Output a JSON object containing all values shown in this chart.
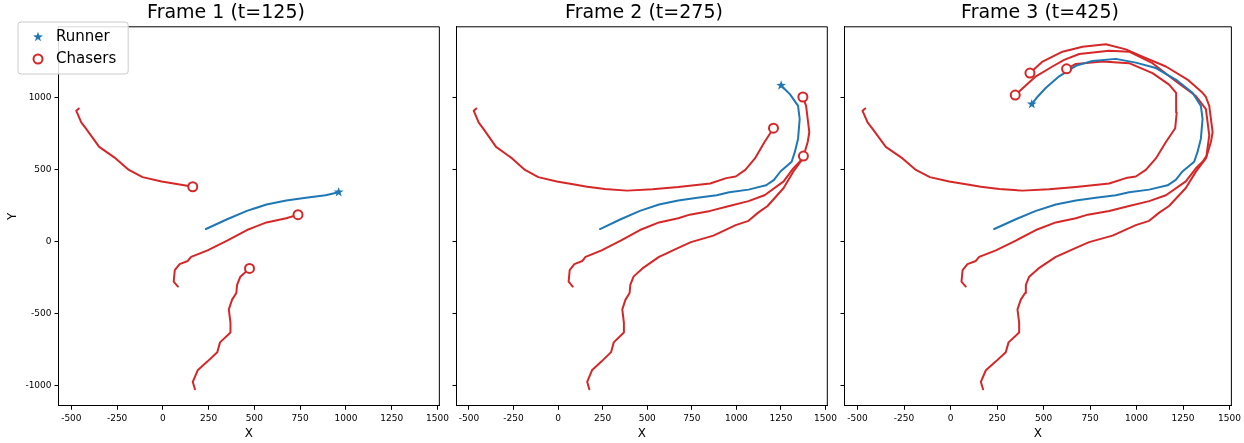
{
  "chart_data": [
    {
      "type": "line",
      "title": "Frame 1 (t=125)",
      "xlabel": "X",
      "ylabel": "Y",
      "xlim": [
        -570,
        1510
      ],
      "ylim": [
        -1140,
        1495
      ],
      "xticks": [
        -500,
        -250,
        0,
        250,
        500,
        750,
        1000,
        1250,
        1500
      ],
      "yticks": [
        -1000,
        -500,
        0,
        500,
        1000
      ],
      "grid": false,
      "legend": "top left",
      "series": [
        {
          "type": "line",
          "marker": "none",
          "color": "#1f77b4",
          "x": [
            235,
            351,
            459,
            566,
            674,
            781,
            889,
            960
          ],
          "values": [
            89,
            157,
            215,
            260,
            288,
            306,
            324,
            345
          ]
        },
        {
          "type": "line",
          "marker": "none",
          "color": "#d62728",
          "x": [
            -459,
            -473,
            -446,
            -419,
            -348,
            -258,
            -186,
            -111,
            -7,
            100,
            163
          ],
          "values": [
            927,
            911,
            831,
            785,
            660,
            580,
            500,
            450,
            420,
            397,
            383
          ]
        },
        {
          "type": "line",
          "marker": "none",
          "color": "#d62728",
          "x": [
            82,
            59,
            65,
            91,
            136,
            154,
            244,
            351,
            459,
            566,
            674,
            738
          ],
          "values": [
            -311,
            -276,
            -196,
            -155,
            -133,
            -105,
            -59,
            9,
            82,
            135,
            164,
            189
          ]
        },
        {
          "type": "line",
          "marker": "none",
          "color": "#d62728",
          "x": [
            175,
            163,
            190,
            244,
            297,
            312,
            369,
            369,
            360,
            378,
            401,
            405,
            423,
            473
          ],
          "values": [
            -1025,
            -973,
            -893,
            -831,
            -767,
            -699,
            -630,
            -562,
            -470,
            -402,
            -356,
            -299,
            -242,
            -185
          ]
        },
        {
          "type": "scatter",
          "name": "Runner",
          "marker": "star",
          "color": "#1f77b4",
          "x": [
            960
          ],
          "values": [
            345
          ]
        },
        {
          "type": "scatter",
          "name": "Chasers",
          "marker": "circle",
          "color": "#d62728",
          "x": [
            163,
            738,
            473
          ],
          "values": [
            383,
            189,
            -185
          ]
        }
      ]
    },
    {
      "type": "line",
      "title": "Frame 2 (t=275)",
      "xlabel": "X",
      "xlim": [
        -570,
        1510
      ],
      "ylim": [
        -1140,
        1495
      ],
      "xticks": [
        -500,
        -250,
        0,
        250,
        500,
        750,
        1000,
        1250,
        1500
      ],
      "yticks": [
        -1000,
        -500,
        0,
        500,
        1000
      ],
      "grid": false,
      "tick_labels": "x",
      "series": [
        {
          "type": "line",
          "marker": "none",
          "color": "#1f77b4",
          "x": [
            235,
            351,
            459,
            566,
            674,
            781,
            889,
            960,
            1068,
            1167,
            1211,
            1247,
            1310,
            1328,
            1346,
            1355,
            1346,
            1301,
            1251
          ],
          "values": [
            89,
            157,
            215,
            260,
            288,
            306,
            324,
            345,
            363,
            393,
            431,
            489,
            557,
            625,
            717,
            854,
            945,
            1025,
            1087
          ]
        },
        {
          "type": "line",
          "marker": "none",
          "color": "#d62728",
          "x": [
            -459,
            -473,
            -446,
            -419,
            -348,
            -258,
            -186,
            -111,
            -7,
            100,
            163,
            262,
            387,
            530,
            674,
            853,
            943,
            996,
            1050,
            1104,
            1158,
            1208
          ],
          "values": [
            927,
            911,
            831,
            785,
            660,
            580,
            500,
            450,
            420,
            397,
            383,
            368,
            356,
            365,
            381,
            406,
            443,
            454,
            500,
            580,
            694,
            790
          ]
        },
        {
          "type": "line",
          "marker": "none",
          "color": "#d62728",
          "x": [
            82,
            59,
            65,
            91,
            136,
            154,
            244,
            351,
            459,
            566,
            674,
            738,
            853,
            960,
            1068,
            1158,
            1265,
            1319,
            1355,
            1376
          ],
          "values": [
            -311,
            -276,
            -196,
            -155,
            -133,
            -105,
            -59,
            9,
            82,
            135,
            164,
            189,
            215,
            249,
            283,
            324,
            420,
            511,
            557,
            596
          ]
        },
        {
          "type": "line",
          "marker": "none",
          "color": "#d62728",
          "x": [
            175,
            163,
            190,
            244,
            297,
            312,
            369,
            369,
            360,
            378,
            401,
            405,
            423,
            473,
            566,
            656,
            745,
            871,
            996,
            1068,
            1122,
            1175,
            1265,
            1319,
            1373,
            1400,
            1409,
            1400,
            1391,
            1373
          ],
          "values": [
            -1025,
            -973,
            -893,
            -831,
            -767,
            -699,
            -630,
            -562,
            -470,
            -402,
            -356,
            -299,
            -242,
            -185,
            -105,
            -53,
            -2,
            43,
            116,
            146,
            203,
            249,
            374,
            488,
            580,
            694,
            762,
            854,
            945,
            1007
          ]
        },
        {
          "type": "scatter",
          "marker": "star",
          "color": "#1f77b4",
          "x": [
            1251
          ],
          "values": [
            1087
          ]
        },
        {
          "type": "scatter",
          "marker": "circle",
          "color": "#d62728",
          "x": [
            1208,
            1376,
            1373
          ],
          "values": [
            790,
            596,
            1007
          ]
        }
      ]
    },
    {
      "type": "line",
      "title": "Frame 3 (t=425)",
      "xlabel": "X",
      "xlim": [
        -570,
        1510
      ],
      "ylim": [
        -1140,
        1495
      ],
      "xticks": [
        -500,
        -250,
        0,
        250,
        500,
        750,
        1000,
        1250,
        1500
      ],
      "yticks": [
        -1000,
        -500,
        0,
        500,
        1000
      ],
      "grid": false,
      "tick_labels": "x",
      "series": [
        {
          "type": "line",
          "marker": "none",
          "color": "#1f77b4",
          "x": [
            235,
            351,
            459,
            566,
            674,
            781,
            889,
            960,
            1068,
            1167,
            1211,
            1247,
            1310,
            1328,
            1346,
            1355,
            1346,
            1301,
            1211,
            1104,
            996,
            889,
            763,
            674,
            584,
            513,
            468,
            437
          ],
          "values": [
            89,
            157,
            215,
            260,
            288,
            306,
            324,
            345,
            363,
            393,
            431,
            489,
            557,
            625,
            717,
            854,
            945,
            1036,
            1128,
            1208,
            1246,
            1272,
            1258,
            1224,
            1151,
            1071,
            1009,
            957
          ]
        },
        {
          "type": "line",
          "marker": "none",
          "color": "#d62728",
          "x": [
            -459,
            -473,
            -446,
            -419,
            -348,
            -258,
            -186,
            -111,
            -7,
            100,
            163,
            262,
            387,
            530,
            674,
            853,
            943,
            996,
            1050,
            1104,
            1158,
            1208,
            1216,
            1213,
            1175,
            1086,
            960,
            817,
            674,
            624
          ],
          "values": [
            927,
            911,
            831,
            785,
            660,
            580,
            500,
            450,
            420,
            397,
            383,
            368,
            356,
            365,
            381,
            406,
            443,
            454,
            500,
            580,
            694,
            790,
            899,
            1036,
            1093,
            1173,
            1242,
            1253,
            1237,
            1203
          ]
        },
        {
          "type": "line",
          "marker": "none",
          "color": "#d62728",
          "x": [
            82,
            59,
            65,
            91,
            136,
            154,
            244,
            351,
            459,
            566,
            674,
            738,
            853,
            960,
            1068,
            1158,
            1265,
            1319,
            1355,
            1376,
            1391,
            1373,
            1319,
            1211,
            1086,
            960,
            853,
            692,
            611,
            548,
            459,
            348
          ],
          "values": [
            -311,
            -276,
            -196,
            -155,
            -133,
            -105,
            -59,
            9,
            82,
            135,
            164,
            189,
            215,
            249,
            283,
            324,
            420,
            511,
            557,
            596,
            740,
            922,
            1014,
            1116,
            1242,
            1322,
            1329,
            1306,
            1265,
            1219,
            1151,
            1020
          ]
        },
        {
          "type": "line",
          "marker": "none",
          "color": "#d62728",
          "x": [
            175,
            163,
            190,
            244,
            297,
            312,
            369,
            369,
            360,
            378,
            401,
            405,
            423,
            473,
            566,
            656,
            745,
            871,
            996,
            1068,
            1122,
            1175,
            1265,
            1319,
            1373,
            1400,
            1409,
            1400,
            1391,
            1373,
            1355,
            1274,
            1158,
            1032,
            943,
            835,
            710,
            602,
            495,
            427
          ],
          "values": [
            -1025,
            -973,
            -893,
            -831,
            -767,
            -699,
            -630,
            -562,
            -470,
            -402,
            -356,
            -299,
            -242,
            -185,
            -105,
            -53,
            -2,
            43,
            116,
            146,
            203,
            249,
            374,
            488,
            580,
            694,
            762,
            854,
            945,
            1007,
            1036,
            1128,
            1219,
            1288,
            1338,
            1374,
            1356,
            1322,
            1253,
            1173
          ]
        },
        {
          "type": "scatter",
          "marker": "star",
          "color": "#1f77b4",
          "x": [
            437
          ],
          "values": [
            957
          ]
        },
        {
          "type": "scatter",
          "marker": "circle",
          "color": "#d62728",
          "x": [
            624,
            348,
            427
          ],
          "values": [
            1203,
            1020,
            1173
          ]
        }
      ]
    }
  ]
}
